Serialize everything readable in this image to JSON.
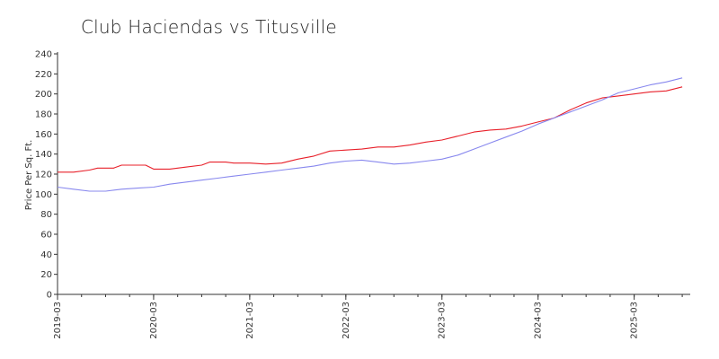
{
  "chart_data": {
    "type": "line",
    "title": "Club Haciendas vs Titusville",
    "xlabel": "",
    "ylabel": "Price Per Sq. Ft.",
    "ylim": [
      0,
      240
    ],
    "yticks": [
      0,
      20,
      40,
      60,
      80,
      100,
      120,
      140,
      160,
      180,
      200,
      220,
      240
    ],
    "xticks": [
      "2019-03",
      "2020-03",
      "2021-03",
      "2022-03",
      "2023-03",
      "2024-03",
      "2025-03"
    ],
    "xlim": [
      "2019-03",
      "2025-10"
    ],
    "grid": false,
    "legend": "none",
    "series": [
      {
        "color": "#e8202a",
        "points": [
          [
            "2019-03",
            122
          ],
          [
            "2019-05",
            122
          ],
          [
            "2019-07",
            124
          ],
          [
            "2019-08",
            126
          ],
          [
            "2019-10",
            126
          ],
          [
            "2019-11",
            129
          ],
          [
            "2020-01",
            129
          ],
          [
            "2020-02",
            129
          ],
          [
            "2020-03",
            125
          ],
          [
            "2020-05",
            125
          ],
          [
            "2020-07",
            127
          ],
          [
            "2020-09",
            129
          ],
          [
            "2020-10",
            132
          ],
          [
            "2020-12",
            132
          ],
          [
            "2021-01",
            131
          ],
          [
            "2021-03",
            131
          ],
          [
            "2021-05",
            130
          ],
          [
            "2021-07",
            131
          ],
          [
            "2021-09",
            135
          ],
          [
            "2021-11",
            138
          ],
          [
            "2022-01",
            143
          ],
          [
            "2022-03",
            144
          ],
          [
            "2022-05",
            145
          ],
          [
            "2022-07",
            147
          ],
          [
            "2022-09",
            147
          ],
          [
            "2022-11",
            149
          ],
          [
            "2023-01",
            152
          ],
          [
            "2023-03",
            154
          ],
          [
            "2023-05",
            158
          ],
          [
            "2023-07",
            162
          ],
          [
            "2023-09",
            164
          ],
          [
            "2023-11",
            165
          ],
          [
            "2024-01",
            168
          ],
          [
            "2024-03",
            172
          ],
          [
            "2024-05",
            176
          ],
          [
            "2024-07",
            184
          ],
          [
            "2024-09",
            191
          ],
          [
            "2024-11",
            196
          ],
          [
            "2025-01",
            198
          ],
          [
            "2025-03",
            200
          ],
          [
            "2025-05",
            202
          ],
          [
            "2025-07",
            203
          ],
          [
            "2025-09",
            207
          ]
        ]
      },
      {
        "color": "#8888ee",
        "points": [
          [
            "2019-03",
            107
          ],
          [
            "2019-05",
            105
          ],
          [
            "2019-07",
            103
          ],
          [
            "2019-09",
            103
          ],
          [
            "2019-11",
            105
          ],
          [
            "2020-01",
            106
          ],
          [
            "2020-03",
            107
          ],
          [
            "2020-05",
            110
          ],
          [
            "2020-07",
            112
          ],
          [
            "2020-09",
            114
          ],
          [
            "2020-11",
            116
          ],
          [
            "2021-01",
            118
          ],
          [
            "2021-03",
            120
          ],
          [
            "2021-05",
            122
          ],
          [
            "2021-07",
            124
          ],
          [
            "2021-09",
            126
          ],
          [
            "2021-11",
            128
          ],
          [
            "2022-01",
            131
          ],
          [
            "2022-03",
            133
          ],
          [
            "2022-05",
            134
          ],
          [
            "2022-07",
            132
          ],
          [
            "2022-09",
            130
          ],
          [
            "2022-11",
            131
          ],
          [
            "2023-01",
            133
          ],
          [
            "2023-03",
            135
          ],
          [
            "2023-05",
            139
          ],
          [
            "2023-07",
            145
          ],
          [
            "2023-09",
            151
          ],
          [
            "2023-11",
            157
          ],
          [
            "2024-01",
            163
          ],
          [
            "2024-03",
            170
          ],
          [
            "2024-05",
            176
          ],
          [
            "2024-07",
            182
          ],
          [
            "2024-09",
            188
          ],
          [
            "2024-11",
            194
          ],
          [
            "2025-01",
            201
          ],
          [
            "2025-03",
            205
          ],
          [
            "2025-05",
            209
          ],
          [
            "2025-07",
            212
          ],
          [
            "2025-09",
            216
          ]
        ]
      }
    ]
  }
}
